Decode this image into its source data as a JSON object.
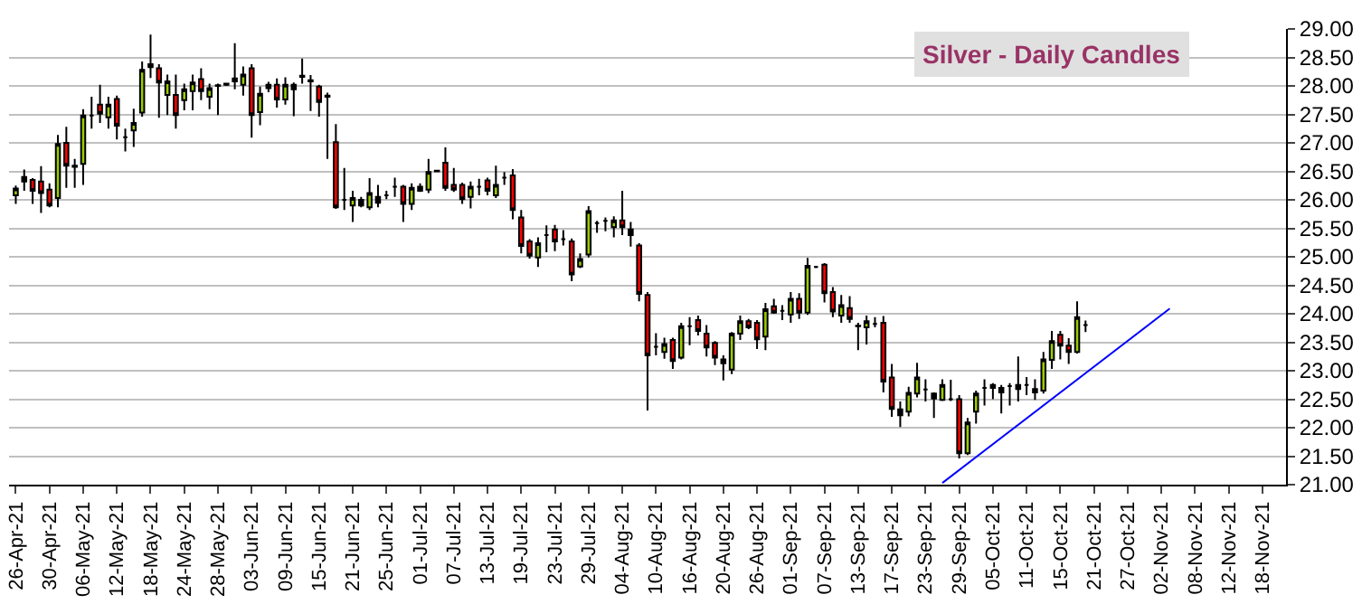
{
  "chart_data": {
    "type": "candlestick",
    "title": "Silver - Daily Candles",
    "categories": [
      "26-Apr-21",
      null,
      null,
      null,
      "30-Apr-21",
      null,
      null,
      null,
      "06-May-21",
      null,
      null,
      null,
      "12-May-21",
      null,
      null,
      null,
      "18-May-21",
      null,
      null,
      null,
      "24-May-21",
      null,
      null,
      null,
      "28-May-21",
      null,
      null,
      null,
      "03-Jun-21",
      null,
      null,
      null,
      "09-Jun-21",
      null,
      null,
      null,
      "15-Jun-21",
      null,
      null,
      null,
      "21-Jun-21",
      null,
      null,
      null,
      "25-Jun-21",
      null,
      null,
      null,
      "01-Jul-21",
      null,
      null,
      null,
      "07-Jul-21",
      null,
      null,
      null,
      "13-Jul-21",
      null,
      null,
      null,
      "19-Jul-21",
      null,
      null,
      null,
      "23-Jul-21",
      null,
      null,
      null,
      "29-Jul-21",
      null,
      null,
      null,
      "04-Aug-21",
      null,
      null,
      null,
      "10-Aug-21",
      null,
      null,
      null,
      "16-Aug-21",
      null,
      null,
      null,
      "20-Aug-21",
      null,
      null,
      null,
      "26-Aug-21",
      null,
      null,
      null,
      "01-Sep-21",
      null,
      null,
      null,
      "07-Sep-21",
      null,
      null,
      null,
      "13-Sep-21",
      null,
      null,
      null,
      "17-Sep-21",
      null,
      null,
      null,
      "23-Sep-21",
      null,
      null,
      null,
      "29-Sep-21",
      null,
      null,
      null,
      "05-Oct-21",
      null,
      null,
      null,
      "11-Oct-21",
      null,
      null,
      null,
      "15-Oct-21",
      null,
      null,
      null,
      "21-Oct-21",
      null,
      null,
      null,
      "27-Oct-21",
      null,
      null,
      null,
      "02-Nov-21",
      null,
      null,
      null,
      "08-Nov-21",
      null,
      null,
      null,
      "12-Nov-21",
      null,
      null,
      null,
      "18-Nov-21",
      null,
      null
    ],
    "series": [
      {
        "colors": [
          "#99cc00",
          "#000000",
          "#ff0000",
          "#ff0000",
          "#ff0000",
          "#99cc00",
          "#ff0000",
          "#000000",
          "#99cc00",
          "#000000",
          "#ff0000",
          "#99cc00",
          "#ff0000",
          "#000000",
          "#99cc00",
          "#99cc00",
          "#000000",
          "#ff0000",
          "#99cc00",
          "#ff0000",
          "#99cc00",
          "#99cc00",
          "#ff0000",
          "#99cc00",
          "#000000",
          "#000000",
          "#000000",
          "#99cc00",
          "#ff0000",
          "#99cc00",
          "#000000",
          "#ff0000",
          "#99cc00",
          "#000000",
          "#000000",
          "#000000",
          "#ff0000",
          "#000000",
          "#ff0000",
          "#000000",
          "#99cc00",
          "#000000",
          "#99cc00",
          "#000000",
          "#000000",
          "#000000",
          "#ff0000",
          "#99cc00",
          "#000000",
          "#99cc00",
          "#000000",
          "#ff0000",
          "#ff0000",
          "#ff0000",
          "#99cc00",
          "#000000",
          "#ff0000",
          "#99cc00",
          "#000000",
          "#ff0000",
          "#ff0000",
          "#ff0000",
          "#99cc00",
          "#000000",
          "#ff0000",
          "#000000",
          "#ff0000",
          "#99cc00",
          "#99cc00",
          "#000000",
          "#000000",
          "#99cc00",
          "#ff0000",
          "#000000",
          "#ff0000",
          "#ff0000",
          "#000000",
          "#99cc00",
          "#ff0000",
          "#99cc00",
          "#000000",
          "#ff0000",
          "#ff0000",
          "#ff0000",
          "#000000",
          "#99cc00",
          "#99cc00",
          "#ff0000",
          "#ff0000",
          "#99cc00",
          "#ff0000",
          "#000000",
          "#99cc00",
          "#ff0000",
          "#99cc00",
          "#000000",
          "#ff0000",
          "#ff0000",
          "#99cc00",
          "#ff0000",
          "#000000",
          "#99cc00",
          "#000000",
          "#ff0000",
          "#ff0000",
          "#000000",
          "#99cc00",
          "#99cc00",
          "#000000",
          "#000000",
          "#99cc00",
          "#000000",
          "#ff0000",
          "#99cc00",
          "#99cc00",
          "#000000",
          "#000000",
          "#000000",
          "#000000",
          "#000000",
          "#000000",
          "#000000",
          "#99cc00",
          "#99cc00",
          "#ff0000",
          "#ff0000",
          "#99cc00",
          "#000000",
          null,
          null,
          null,
          null,
          null,
          null,
          null,
          null,
          null,
          null,
          null,
          null,
          null,
          null,
          null,
          null,
          null,
          null,
          null,
          null,
          null,
          null,
          null
        ],
        "ohlc": [
          [
            26.08,
            26.25,
            25.93,
            26.2
          ],
          [
            26.32,
            26.53,
            26.16,
            26.4
          ],
          [
            26.35,
            26.38,
            25.93,
            26.16
          ],
          [
            26.32,
            26.59,
            25.77,
            26.12
          ],
          [
            26.18,
            26.29,
            25.87,
            25.9
          ],
          [
            26.03,
            27.14,
            25.87,
            26.98
          ],
          [
            27.0,
            27.28,
            26.21,
            26.6
          ],
          [
            26.58,
            26.72,
            26.21,
            26.6
          ],
          [
            26.63,
            27.59,
            26.26,
            27.48
          ],
          [
            27.48,
            27.81,
            27.25,
            27.48
          ],
          [
            27.67,
            28.02,
            27.35,
            27.51
          ],
          [
            27.45,
            27.81,
            27.25,
            27.67
          ],
          [
            27.77,
            27.83,
            27.06,
            27.3
          ],
          [
            27.1,
            27.25,
            26.85,
            27.1
          ],
          [
            27.22,
            27.6,
            26.93,
            27.35
          ],
          [
            27.53,
            28.43,
            27.46,
            28.28
          ],
          [
            28.33,
            28.9,
            28.14,
            28.38
          ],
          [
            28.31,
            28.38,
            27.44,
            28.06
          ],
          [
            27.84,
            28.2,
            27.49,
            28.08
          ],
          [
            27.84,
            28.2,
            27.25,
            27.49
          ],
          [
            27.75,
            28.04,
            27.57,
            27.94
          ],
          [
            27.91,
            28.2,
            27.57,
            28.06
          ],
          [
            28.12,
            28.31,
            27.75,
            27.91
          ],
          [
            27.81,
            28.04,
            27.59,
            27.96
          ],
          [
            28.0,
            28.04,
            27.49,
            28.01
          ],
          [
            28.02,
            28.05,
            28.0,
            28.04
          ],
          [
            28.08,
            28.75,
            27.94,
            28.13
          ],
          [
            28.02,
            28.34,
            27.83,
            28.2
          ],
          [
            28.31,
            28.38,
            27.09,
            27.49
          ],
          [
            27.54,
            27.99,
            27.31,
            27.86
          ],
          [
            27.96,
            28.07,
            27.89,
            28.02
          ],
          [
            28.02,
            28.13,
            27.62,
            27.76
          ],
          [
            27.76,
            28.15,
            27.67,
            28.02
          ],
          [
            27.94,
            28.06,
            27.47,
            28.02
          ],
          [
            28.16,
            28.48,
            28.04,
            28.18
          ],
          [
            28.1,
            28.19,
            27.56,
            28.08
          ],
          [
            27.99,
            28.02,
            27.46,
            27.72
          ],
          [
            27.83,
            27.88,
            26.72,
            27.81
          ],
          [
            27.01,
            27.33,
            25.84,
            25.87
          ],
          [
            26.0,
            26.56,
            25.82,
            26.0
          ],
          [
            25.9,
            26.16,
            25.61,
            26.03
          ],
          [
            26.0,
            26.05,
            25.87,
            25.9
          ],
          [
            25.87,
            26.38,
            25.82,
            26.12
          ],
          [
            25.95,
            26.26,
            25.87,
            26.05
          ],
          [
            26.08,
            26.16,
            26.01,
            26.08
          ],
          [
            26.23,
            26.39,
            26.05,
            26.23
          ],
          [
            26.23,
            26.26,
            25.61,
            25.93
          ],
          [
            25.93,
            26.29,
            25.82,
            26.21
          ],
          [
            26.23,
            26.29,
            26.14,
            26.16
          ],
          [
            26.18,
            26.72,
            26.12,
            26.49
          ],
          [
            26.5,
            26.52,
            26.49,
            26.51
          ],
          [
            26.65,
            26.92,
            26.16,
            26.21
          ],
          [
            26.26,
            26.56,
            26.14,
            26.18
          ],
          [
            26.26,
            26.3,
            25.93,
            26.01
          ],
          [
            26.05,
            26.32,
            25.85,
            26.23
          ],
          [
            26.23,
            26.37,
            26.08,
            26.23
          ],
          [
            26.34,
            26.39,
            26.08,
            26.16
          ],
          [
            26.08,
            26.6,
            26.03,
            26.26
          ],
          [
            26.39,
            26.49,
            26.26,
            26.39
          ],
          [
            26.43,
            26.54,
            25.66,
            25.82
          ],
          [
            25.69,
            25.82,
            25.06,
            25.19
          ],
          [
            25.27,
            25.31,
            24.97,
            25.02
          ],
          [
            24.99,
            25.34,
            24.82,
            25.24
          ],
          [
            25.38,
            25.55,
            25.08,
            25.38
          ],
          [
            25.48,
            25.56,
            25.1,
            25.27
          ],
          [
            25.31,
            25.47,
            25.2,
            25.31
          ],
          [
            25.27,
            25.32,
            24.57,
            24.69
          ],
          [
            24.83,
            25.06,
            24.8,
            24.96
          ],
          [
            25.04,
            25.89,
            24.99,
            25.8
          ],
          [
            25.59,
            25.63,
            25.42,
            25.59
          ],
          [
            25.63,
            25.69,
            25.45,
            25.63
          ],
          [
            25.52,
            25.71,
            25.34,
            25.64
          ],
          [
            25.64,
            26.16,
            25.38,
            25.52
          ],
          [
            25.48,
            25.61,
            25.18,
            25.38
          ],
          [
            25.2,
            25.24,
            24.22,
            24.35
          ],
          [
            24.33,
            24.38,
            22.3,
            23.27
          ],
          [
            23.42,
            23.66,
            23.27,
            23.42
          ],
          [
            23.33,
            23.58,
            23.21,
            23.47
          ],
          [
            23.54,
            23.58,
            23.03,
            23.17
          ],
          [
            23.23,
            23.84,
            23.2,
            23.78
          ],
          [
            23.78,
            23.94,
            23.45,
            23.78
          ],
          [
            23.89,
            23.97,
            23.62,
            23.7
          ],
          [
            23.65,
            23.8,
            23.25,
            23.41
          ],
          [
            23.49,
            23.52,
            23.1,
            23.23
          ],
          [
            23.2,
            23.27,
            22.83,
            23.13
          ],
          [
            23.02,
            23.68,
            22.94,
            23.65
          ],
          [
            23.65,
            23.97,
            23.54,
            23.87
          ],
          [
            23.87,
            23.91,
            23.73,
            23.76
          ],
          [
            23.84,
            23.89,
            23.38,
            23.55
          ],
          [
            23.6,
            24.19,
            23.36,
            24.08
          ],
          [
            24.13,
            24.26,
            24.0,
            24.02
          ],
          [
            24.05,
            24.15,
            23.89,
            24.05
          ],
          [
            23.99,
            24.38,
            23.84,
            24.26
          ],
          [
            24.26,
            24.36,
            23.91,
            24.02
          ],
          [
            24.02,
            24.98,
            23.98,
            24.84
          ],
          [
            24.82,
            24.84,
            24.8,
            24.82
          ],
          [
            24.86,
            24.89,
            24.2,
            24.36
          ],
          [
            24.38,
            24.47,
            23.94,
            24.04
          ],
          [
            23.97,
            24.33,
            23.84,
            24.15
          ],
          [
            24.1,
            24.31,
            23.84,
            23.91
          ],
          [
            23.79,
            23.84,
            23.36,
            23.78
          ],
          [
            23.76,
            23.97,
            23.46,
            23.87
          ],
          [
            23.82,
            23.94,
            23.76,
            23.82
          ],
          [
            23.84,
            23.96,
            22.62,
            22.81
          ],
          [
            22.88,
            23.12,
            22.19,
            22.33
          ],
          [
            22.32,
            22.46,
            22.01,
            22.22
          ],
          [
            22.28,
            22.72,
            22.2,
            22.61
          ],
          [
            22.6,
            23.14,
            22.53,
            22.88
          ],
          [
            22.67,
            22.85,
            22.46,
            22.67
          ],
          [
            22.6,
            22.62,
            22.17,
            22.51
          ],
          [
            22.49,
            22.85,
            22.47,
            22.75
          ],
          [
            22.5,
            22.84,
            22.47,
            22.5
          ],
          [
            22.5,
            22.57,
            21.46,
            21.55
          ],
          [
            21.55,
            22.17,
            21.52,
            22.09
          ],
          [
            22.28,
            22.65,
            22.07,
            22.6
          ],
          [
            22.7,
            22.85,
            22.39,
            22.7
          ],
          [
            22.75,
            22.78,
            22.5,
            22.7
          ],
          [
            22.7,
            22.75,
            22.25,
            22.62
          ],
          [
            22.73,
            22.78,
            22.39,
            22.73
          ],
          [
            22.68,
            23.25,
            22.46,
            22.75
          ],
          [
            22.75,
            22.89,
            22.57,
            22.75
          ],
          [
            22.68,
            22.85,
            22.49,
            22.62
          ],
          [
            22.65,
            23.33,
            22.6,
            23.2
          ],
          [
            23.19,
            23.7,
            23.03,
            23.52
          ],
          [
            23.63,
            23.7,
            23.2,
            23.44
          ],
          [
            23.44,
            23.57,
            23.12,
            23.33
          ],
          [
            23.33,
            24.22,
            23.3,
            23.94
          ],
          [
            23.8,
            23.88,
            23.68,
            23.8
          ],
          null,
          null,
          null,
          null,
          null,
          null,
          null,
          null,
          null,
          null,
          null,
          null,
          null,
          null,
          null,
          null,
          null,
          null,
          null,
          null,
          null,
          null,
          null
        ]
      },
      {
        "type": "line",
        "color": "#0000ff",
        "values": [
          null,
          null,
          null,
          null,
          null,
          null,
          null,
          null,
          null,
          null,
          null,
          null,
          null,
          null,
          null,
          null,
          null,
          null,
          null,
          null,
          null,
          null,
          null,
          null,
          null,
          null,
          null,
          null,
          null,
          null,
          null,
          null,
          null,
          null,
          null,
          null,
          null,
          null,
          null,
          null,
          null,
          null,
          null,
          null,
          null,
          null,
          null,
          null,
          null,
          null,
          null,
          null,
          null,
          null,
          null,
          null,
          null,
          null,
          null,
          null,
          null,
          null,
          null,
          null,
          null,
          null,
          null,
          null,
          null,
          null,
          null,
          null,
          null,
          null,
          null,
          null,
          null,
          null,
          null,
          null,
          null,
          null,
          null,
          null,
          null,
          null,
          null,
          null,
          null,
          null,
          null,
          null,
          null,
          null,
          null,
          null,
          null,
          null,
          null,
          null,
          null,
          null,
          null,
          null,
          null,
          null,
          null,
          null,
          null,
          null,
          21.03,
          null,
          null,
          null,
          null,
          null,
          null,
          null,
          null,
          null,
          null,
          null,
          null,
          null,
          null,
          null,
          null,
          null,
          null,
          null,
          null,
          null,
          null,
          null,
          null,
          null,
          null,
          24.09,
          null,
          null,
          null,
          null,
          null,
          null,
          null,
          null,
          null,
          null,
          null,
          null,
          null
        ]
      }
    ],
    "ylim": [
      21,
      29
    ],
    "yticks": [
      {
        "value": 21,
        "label": "21.00"
      },
      {
        "value": 21.5,
        "label": "21.50"
      },
      {
        "value": 22,
        "label": "22.00"
      },
      {
        "value": 22.5,
        "label": "22.50"
      },
      {
        "value": 23,
        "label": "23.00"
      },
      {
        "value": 23.5,
        "label": "23.50"
      },
      {
        "value": 24,
        "label": "24.00"
      },
      {
        "value": 24.5,
        "label": "24.50"
      },
      {
        "value": 25,
        "label": "25.00"
      },
      {
        "value": 25.5,
        "label": "25.50"
      },
      {
        "value": 26,
        "label": "26.00"
      },
      {
        "value": 26.5,
        "label": "26.50"
      },
      {
        "value": 27,
        "label": "27.00"
      },
      {
        "value": 27.5,
        "label": "27.50"
      },
      {
        "value": 28,
        "label": "28.00"
      },
      {
        "value": 28.5,
        "label": "28.50"
      },
      {
        "value": 29,
        "label": "29.00"
      }
    ],
    "grid": "y",
    "legend": false
  }
}
